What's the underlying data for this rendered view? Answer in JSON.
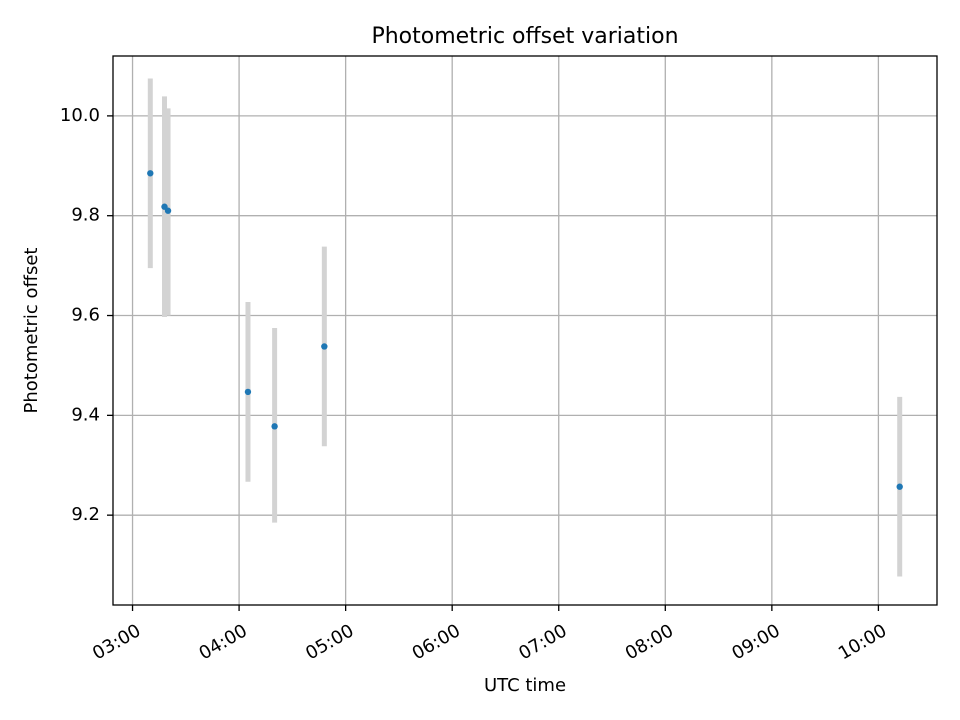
{
  "chart_data": {
    "type": "scatter",
    "title": "Photometric offset variation",
    "xlabel": "UTC time",
    "ylabel": "Photometric offset",
    "x_ticks": [
      "03:00",
      "04:00",
      "05:00",
      "06:00",
      "07:00",
      "08:00",
      "09:00",
      "10:00"
    ],
    "y_ticks": [
      "9.2",
      "9.4",
      "9.6",
      "9.8",
      "10.0"
    ],
    "xlim": [
      "02:49",
      "10:33"
    ],
    "ylim": [
      9.02,
      10.12
    ],
    "grid": true,
    "x_tick_label_rotation_deg": 30,
    "series": [
      {
        "x": [
          "03:10",
          "03:18",
          "03:20",
          "04:05",
          "04:20",
          "04:48",
          "10:12"
        ],
        "y": [
          9.885,
          9.818,
          9.81,
          9.447,
          9.378,
          9.538,
          9.257
        ],
        "yerr_low": [
          0.19,
          0.221,
          0.21,
          0.18,
          0.193,
          0.2,
          0.18
        ],
        "yerr_high": [
          0.19,
          0.221,
          0.205,
          0.18,
          0.197,
          0.2,
          0.18
        ]
      }
    ],
    "marker_color": "#1f77b4",
    "errorbar_color": "#d3d3d3"
  }
}
